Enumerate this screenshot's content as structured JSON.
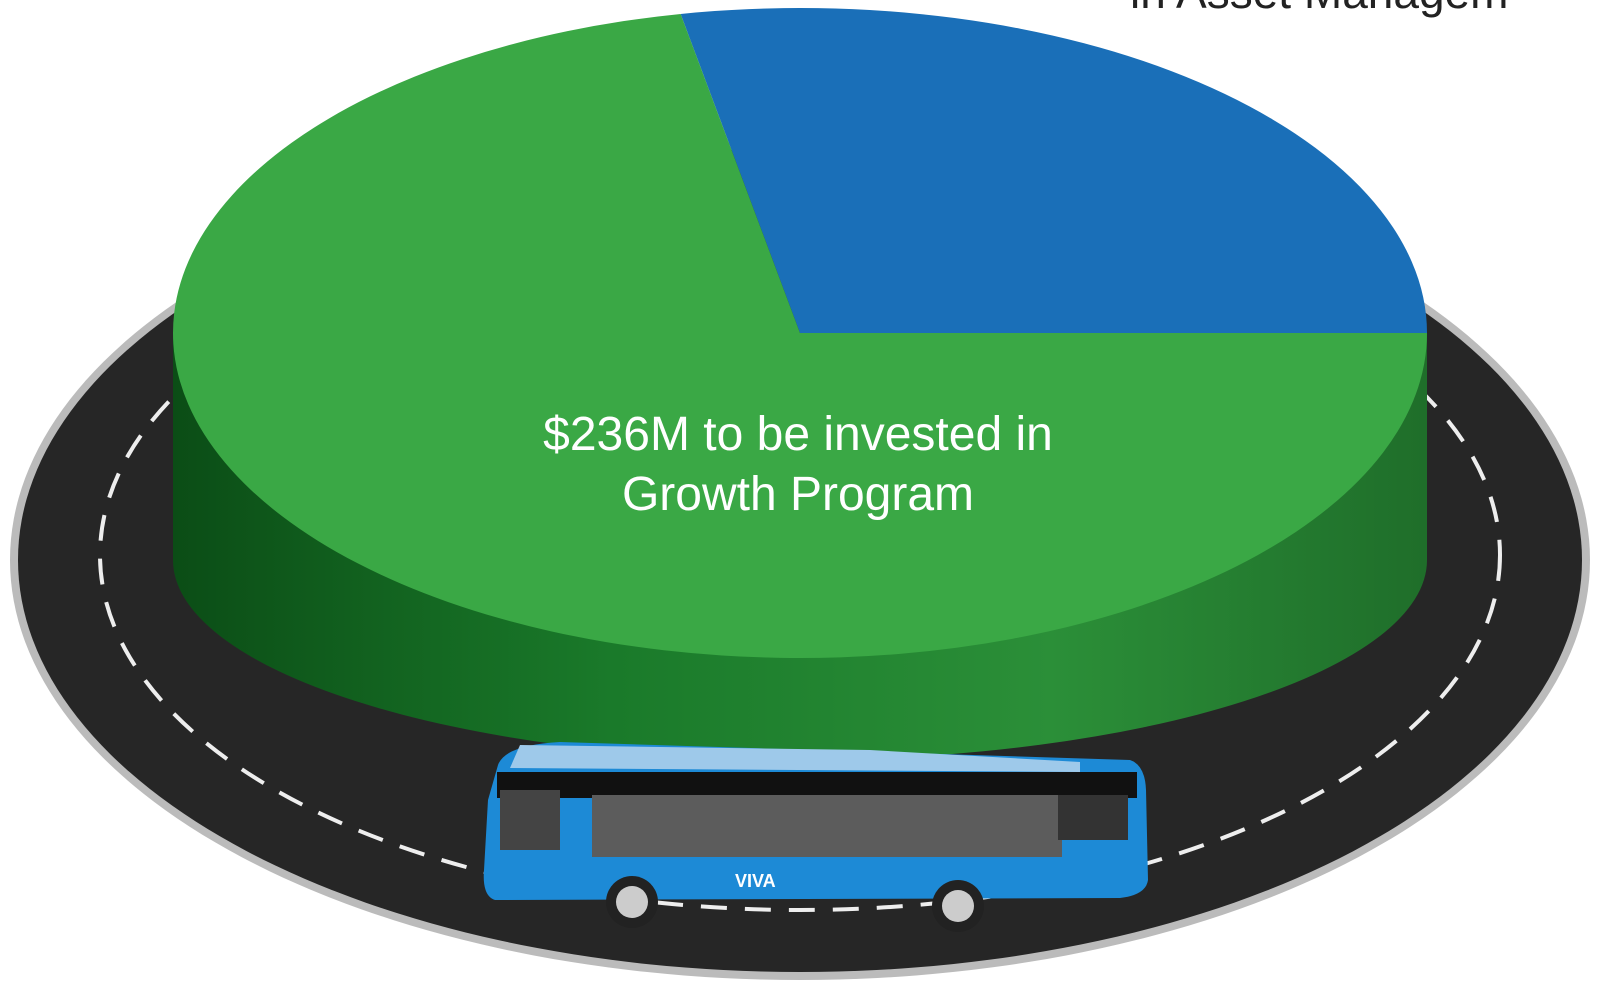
{
  "chart_data": {
    "type": "pie",
    "values": [
      92,
      236
    ],
    "value_labels": [
      null,
      "$236M to be invested in Growth Program"
    ],
    "colors": [
      "#1a6fb8",
      "#3aa845"
    ],
    "annotation": "in Asset Managem"
  }
}
